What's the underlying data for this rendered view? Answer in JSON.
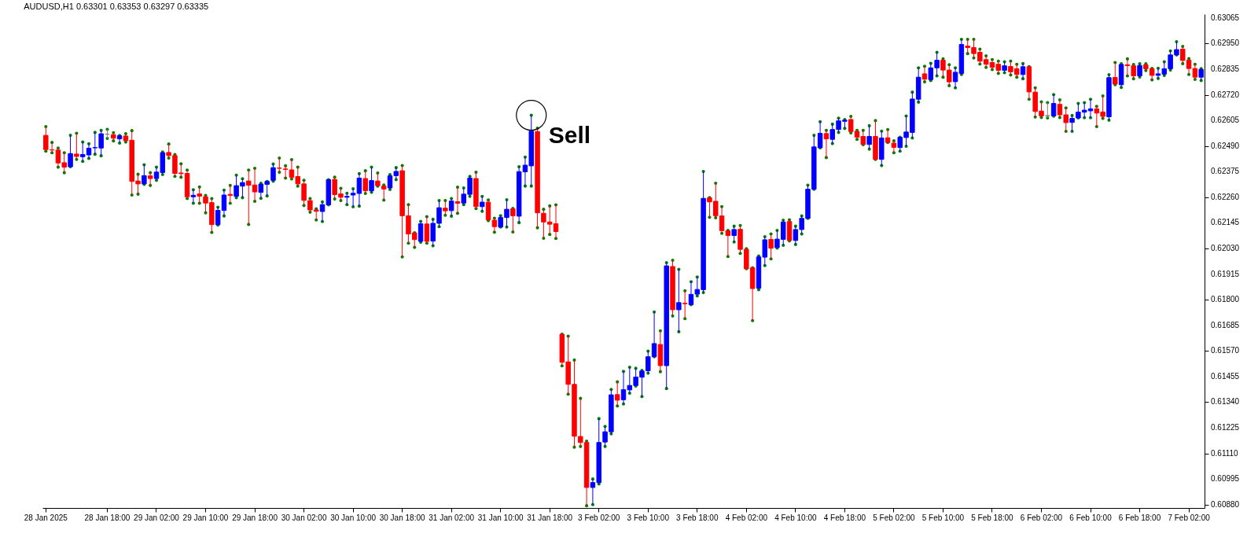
{
  "chart_data": {
    "type": "candlestick",
    "title": "AUDUSD,H1 0.63301 0.63353 0.63297 0.63335",
    "categories": [
      "28 Jan 2025",
      null,
      null,
      null,
      null,
      null,
      null,
      null,
      null,
      null,
      "28 Jan 18:00",
      null,
      null,
      null,
      null,
      null,
      null,
      null,
      "29 Jan 02:00",
      null,
      null,
      null,
      null,
      null,
      null,
      null,
      "29 Jan 10:00",
      null,
      null,
      null,
      null,
      null,
      null,
      null,
      "29 Jan 18:00",
      null,
      null,
      null,
      null,
      null,
      null,
      null,
      "30 Jan 02:00",
      null,
      null,
      null,
      null,
      null,
      null,
      null,
      "30 Jan 10:00",
      null,
      null,
      null,
      null,
      null,
      null,
      null,
      "30 Jan 18:00",
      null,
      null,
      null,
      null,
      null,
      null,
      null,
      "31 Jan 02:00",
      null,
      null,
      null,
      null,
      null,
      null,
      null,
      "31 Jan 10:00",
      null,
      null,
      null,
      null,
      null,
      null,
      null,
      "31 Jan 18:00",
      null,
      null,
      null,
      null,
      null,
      null,
      null,
      "3 Feb 02:00",
      null,
      null,
      null,
      null,
      null,
      null,
      null,
      "3 Feb 10:00",
      null,
      null,
      null,
      null,
      null,
      null,
      null,
      "3 Feb 18:00",
      null,
      null,
      null,
      null,
      null,
      null,
      null,
      "4 Feb 02:00",
      null,
      null,
      null,
      null,
      null,
      null,
      null,
      "4 Feb 10:00",
      null,
      null,
      null,
      null,
      null,
      null,
      null,
      "4 Feb 18:00",
      null,
      null,
      null,
      null,
      null,
      null,
      null,
      "5 Feb 02:00",
      null,
      null,
      null,
      null,
      null,
      null,
      null,
      "5 Feb 10:00",
      null,
      null,
      null,
      null,
      null,
      null,
      null,
      "5 Feb 18:00",
      null,
      null,
      null,
      null,
      null,
      null,
      null,
      "6 Feb 02:00",
      null,
      null,
      null,
      null,
      null,
      null,
      null,
      "6 Feb 10:00",
      null,
      null,
      null,
      null,
      null,
      null,
      null,
      "6 Feb 18:00",
      null,
      null,
      null,
      null,
      null,
      null,
      null,
      "7 Feb 02:00",
      null,
      null
    ],
    "ohlc": [
      [
        0.62538,
        0.62577,
        0.62467,
        0.62474
      ],
      [
        0.62473,
        0.62506,
        0.6246,
        0.62472
      ],
      [
        0.62472,
        0.62481,
        0.62395,
        0.62414
      ],
      [
        0.62415,
        0.6246,
        0.6237,
        0.62395
      ],
      [
        0.62397,
        0.62538,
        0.62397,
        0.62456
      ],
      [
        0.62454,
        0.62547,
        0.6243,
        0.62443
      ],
      [
        0.62442,
        0.62508,
        0.62421,
        0.62452
      ],
      [
        0.6245,
        0.625,
        0.62434,
        0.6248
      ],
      [
        0.62482,
        0.62551,
        0.62453,
        0.62483
      ],
      [
        0.62481,
        0.6256,
        0.62446,
        0.62545
      ],
      [
        0.62543,
        0.62565,
        0.62524,
        0.62543
      ],
      [
        0.62541,
        0.6255,
        0.62513,
        0.62525
      ],
      [
        0.62522,
        0.62537,
        0.62503,
        0.62536
      ],
      [
        0.62535,
        0.62545,
        0.62508,
        0.62514
      ],
      [
        0.62516,
        0.62559,
        0.6227,
        0.62331
      ],
      [
        0.62333,
        0.62363,
        0.62274,
        0.6232
      ],
      [
        0.6232,
        0.62406,
        0.62318,
        0.62357
      ],
      [
        0.62356,
        0.6237,
        0.62313,
        0.62344
      ],
      [
        0.62344,
        0.62395,
        0.62336,
        0.62373
      ],
      [
        0.62371,
        0.62463,
        0.62362,
        0.6246
      ],
      [
        0.62461,
        0.62499,
        0.62436,
        0.62447
      ],
      [
        0.62447,
        0.62452,
        0.62354,
        0.62367
      ],
      [
        0.62369,
        0.6241,
        0.6235,
        0.62366
      ],
      [
        0.62367,
        0.62382,
        0.62254,
        0.62262
      ],
      [
        0.62262,
        0.62294,
        0.62233,
        0.62269
      ],
      [
        0.62275,
        0.62306,
        0.62233,
        0.62265
      ],
      [
        0.62262,
        0.62268,
        0.6219,
        0.62234
      ],
      [
        0.62236,
        0.62254,
        0.62102,
        0.62137
      ],
      [
        0.62137,
        0.62215,
        0.62135,
        0.62201
      ],
      [
        0.62201,
        0.62292,
        0.62176,
        0.6227
      ],
      [
        0.62273,
        0.62313,
        0.62233,
        0.62268
      ],
      [
        0.62264,
        0.62359,
        0.62258,
        0.62312
      ],
      [
        0.6231,
        0.62343,
        0.62258,
        0.62326
      ],
      [
        0.62333,
        0.62382,
        0.62138,
        0.62314
      ],
      [
        0.62315,
        0.6239,
        0.62242,
        0.62284
      ],
      [
        0.62282,
        0.62323,
        0.62255,
        0.62319
      ],
      [
        0.62318,
        0.62331,
        0.62266,
        0.62331
      ],
      [
        0.62336,
        0.62409,
        0.62332,
        0.62393
      ],
      [
        0.62391,
        0.62436,
        0.62372,
        0.6239
      ],
      [
        0.62387,
        0.62401,
        0.62346,
        0.62385
      ],
      [
        0.62383,
        0.62429,
        0.62342,
        0.6235
      ],
      [
        0.62353,
        0.62395,
        0.6231,
        0.6232
      ],
      [
        0.6232,
        0.62336,
        0.62223,
        0.62246
      ],
      [
        0.62245,
        0.62254,
        0.62193,
        0.62203
      ],
      [
        0.62203,
        0.62208,
        0.62158,
        0.62197
      ],
      [
        0.62196,
        0.62239,
        0.62151,
        0.62227
      ],
      [
        0.62226,
        0.62339,
        0.62226,
        0.62339
      ],
      [
        0.6234,
        0.6235,
        0.62252,
        0.62272
      ],
      [
        0.62275,
        0.623,
        0.62245,
        0.6226
      ],
      [
        0.6226,
        0.62278,
        0.62227,
        0.62264
      ],
      [
        0.6227,
        0.62298,
        0.62217,
        0.62278
      ],
      [
        0.62277,
        0.62366,
        0.6222,
        0.62346
      ],
      [
        0.62344,
        0.62379,
        0.62277,
        0.62289
      ],
      [
        0.62289,
        0.62395,
        0.62282,
        0.62335
      ],
      [
        0.62333,
        0.62369,
        0.6231,
        0.62312
      ],
      [
        0.6231,
        0.62315,
        0.62247,
        0.62297
      ],
      [
        0.62302,
        0.62362,
        0.62295,
        0.62356
      ],
      [
        0.62357,
        0.62393,
        0.62339,
        0.62376
      ],
      [
        0.62379,
        0.62402,
        0.61992,
        0.62177
      ],
      [
        0.62177,
        0.62227,
        0.62054,
        0.62095
      ],
      [
        0.621,
        0.621,
        0.62035,
        0.6207
      ],
      [
        0.62062,
        0.62152,
        0.62058,
        0.62141
      ],
      [
        0.6214,
        0.62173,
        0.62054,
        0.62062
      ],
      [
        0.62063,
        0.62161,
        0.62042,
        0.62143
      ],
      [
        0.62143,
        0.62245,
        0.62128,
        0.62213
      ],
      [
        0.62211,
        0.62245,
        0.62179,
        0.62199
      ],
      [
        0.622,
        0.62254,
        0.62175,
        0.62243
      ],
      [
        0.6224,
        0.62305,
        0.62188,
        0.62233
      ],
      [
        0.62234,
        0.62302,
        0.62227,
        0.62274
      ],
      [
        0.62273,
        0.62354,
        0.62264,
        0.62346
      ],
      [
        0.62344,
        0.62372,
        0.62209,
        0.62218
      ],
      [
        0.62218,
        0.62264,
        0.62197,
        0.62238
      ],
      [
        0.62238,
        0.62248,
        0.62155,
        0.62159
      ],
      [
        0.62157,
        0.62166,
        0.62103,
        0.62128
      ],
      [
        0.62126,
        0.62177,
        0.62126,
        0.62169
      ],
      [
        0.62169,
        0.62249,
        0.62126,
        0.62206
      ],
      [
        0.62208,
        0.6221,
        0.62104,
        0.62177
      ],
      [
        0.62175,
        0.62397,
        0.62146,
        0.62375
      ],
      [
        0.62374,
        0.6244,
        0.6231,
        0.62404
      ],
      [
        0.62401,
        0.62628,
        0.6231,
        0.62557
      ],
      [
        0.62555,
        0.6257,
        0.62123,
        0.6219
      ],
      [
        0.62188,
        0.62206,
        0.62076,
        0.62149
      ],
      [
        0.62149,
        0.62221,
        0.62093,
        0.62139
      ],
      [
        0.62141,
        0.62226,
        0.62075,
        0.62106
      ],
      [
        0.61645,
        0.61645,
        0.61503,
        0.61519
      ],
      [
        0.61521,
        0.61636,
        0.61376,
        0.6142
      ],
      [
        0.6142,
        0.61529,
        0.61138,
        0.61187
      ],
      [
        0.61186,
        0.61357,
        0.61141,
        0.61159
      ],
      [
        0.61159,
        0.61165,
        0.60875,
        0.60957
      ],
      [
        0.60957,
        0.60995,
        0.6088,
        0.60979
      ],
      [
        0.60979,
        0.61266,
        0.60973,
        0.61159
      ],
      [
        0.61161,
        0.61231,
        0.61141,
        0.61207
      ],
      [
        0.61207,
        0.61397,
        0.61198,
        0.61373
      ],
      [
        0.61374,
        0.61431,
        0.61323,
        0.61349
      ],
      [
        0.61351,
        0.61478,
        0.61332,
        0.61396
      ],
      [
        0.61395,
        0.61497,
        0.6138,
        0.61415
      ],
      [
        0.61415,
        0.61492,
        0.61412,
        0.61453
      ],
      [
        0.61452,
        0.61483,
        0.61365,
        0.6148
      ],
      [
        0.61481,
        0.61569,
        0.6147,
        0.61544
      ],
      [
        0.61544,
        0.61745,
        0.61544,
        0.61603
      ],
      [
        0.61599,
        0.6166,
        0.61477,
        0.61504
      ],
      [
        0.61504,
        0.61966,
        0.61401,
        0.61952
      ],
      [
        0.61949,
        0.61977,
        0.61727,
        0.61755
      ],
      [
        0.61755,
        0.61936,
        0.61656,
        0.61787
      ],
      [
        0.61784,
        0.6184,
        0.61715,
        0.61782
      ],
      [
        0.61778,
        0.61881,
        0.61778,
        0.61824
      ],
      [
        0.61825,
        0.61902,
        0.61817,
        0.61846
      ],
      [
        0.61845,
        0.62376,
        0.61832,
        0.62255
      ],
      [
        0.62258,
        0.62258,
        0.6217,
        0.62239
      ],
      [
        0.62242,
        0.62323,
        0.62168,
        0.62177
      ],
      [
        0.62176,
        0.62218,
        0.62098,
        0.6211
      ],
      [
        0.62109,
        0.62111,
        0.61994,
        0.62088
      ],
      [
        0.62088,
        0.6213,
        0.62059,
        0.62115
      ],
      [
        0.62116,
        0.62133,
        0.62008,
        0.62026
      ],
      [
        0.62026,
        0.62029,
        0.61939,
        0.61939
      ],
      [
        0.61943,
        0.61943,
        0.61706,
        0.6185
      ],
      [
        0.61852,
        0.61996,
        0.61845,
        0.61992
      ],
      [
        0.61991,
        0.62083,
        0.61953,
        0.62069
      ],
      [
        0.62071,
        0.62095,
        0.61983,
        0.62031
      ],
      [
        0.62034,
        0.62111,
        0.62032,
        0.62072
      ],
      [
        0.62071,
        0.62157,
        0.62044,
        0.62149
      ],
      [
        0.62151,
        0.62159,
        0.62064,
        0.62066
      ],
      [
        0.62066,
        0.6213,
        0.62048,
        0.62115
      ],
      [
        0.62115,
        0.62176,
        0.62095,
        0.62165
      ],
      [
        0.62165,
        0.62314,
        0.62165,
        0.62296
      ],
      [
        0.62296,
        0.62538,
        0.62296,
        0.62486
      ],
      [
        0.62482,
        0.62599,
        0.62482,
        0.62547
      ],
      [
        0.62546,
        0.6256,
        0.62438,
        0.62522
      ],
      [
        0.6252,
        0.62588,
        0.62501,
        0.62564
      ],
      [
        0.62564,
        0.62615,
        0.62551,
        0.62603
      ],
      [
        0.62601,
        0.62609,
        0.62569,
        0.62606
      ],
      [
        0.62609,
        0.62623,
        0.62549,
        0.62555
      ],
      [
        0.62556,
        0.6256,
        0.6252,
        0.6253
      ],
      [
        0.62533,
        0.6256,
        0.62496,
        0.62497
      ],
      [
        0.62497,
        0.62581,
        0.62476,
        0.62533
      ],
      [
        0.62533,
        0.62604,
        0.6243,
        0.6243
      ],
      [
        0.6243,
        0.62557,
        0.62402,
        0.62526
      ],
      [
        0.62527,
        0.62564,
        0.62506,
        0.62506
      ],
      [
        0.62503,
        0.62513,
        0.6246,
        0.62484
      ],
      [
        0.62483,
        0.62529,
        0.62467,
        0.62529
      ],
      [
        0.62528,
        0.62625,
        0.62489,
        0.62553
      ],
      [
        0.62551,
        0.62732,
        0.62526,
        0.62701
      ],
      [
        0.627,
        0.62841,
        0.62687,
        0.62799
      ],
      [
        0.62814,
        0.62848,
        0.62778,
        0.6279
      ],
      [
        0.62788,
        0.62861,
        0.62784,
        0.62841
      ],
      [
        0.62841,
        0.62911,
        0.62805,
        0.62875
      ],
      [
        0.62875,
        0.62881,
        0.62799,
        0.62831
      ],
      [
        0.62831,
        0.62855,
        0.62761,
        0.62778
      ],
      [
        0.62779,
        0.62841,
        0.62751,
        0.62821
      ],
      [
        0.62816,
        0.62969,
        0.62811,
        0.62946
      ],
      [
        0.62939,
        0.62969,
        0.62905,
        0.62932
      ],
      [
        0.62932,
        0.62969,
        0.62885,
        0.62905
      ],
      [
        0.62911,
        0.62925,
        0.62858,
        0.62871
      ],
      [
        0.62878,
        0.62895,
        0.62843,
        0.62857
      ],
      [
        0.62865,
        0.62878,
        0.62833,
        0.62843
      ],
      [
        0.62857,
        0.62871,
        0.62816,
        0.6283
      ],
      [
        0.6283,
        0.62868,
        0.62819,
        0.6285
      ],
      [
        0.62847,
        0.62871,
        0.62809,
        0.62823
      ],
      [
        0.62837,
        0.62857,
        0.62799,
        0.62811
      ],
      [
        0.62811,
        0.6286,
        0.62792,
        0.62846
      ],
      [
        0.62846,
        0.62846,
        0.627,
        0.62733
      ],
      [
        0.62732,
        0.62751,
        0.6262,
        0.62645
      ],
      [
        0.62647,
        0.62688,
        0.62618,
        0.62625
      ],
      [
        0.62626,
        0.62685,
        0.62616,
        0.62626
      ],
      [
        0.62625,
        0.62721,
        0.62624,
        0.62681
      ],
      [
        0.62677,
        0.62697,
        0.62618,
        0.6263
      ],
      [
        0.6263,
        0.62661,
        0.62556,
        0.62595
      ],
      [
        0.62596,
        0.62627,
        0.62556,
        0.62614
      ],
      [
        0.62616,
        0.62681,
        0.62616,
        0.62642
      ],
      [
        0.62642,
        0.62685,
        0.62617,
        0.62651
      ],
      [
        0.62648,
        0.627,
        0.62617,
        0.62657
      ],
      [
        0.62657,
        0.62668,
        0.62577,
        0.62638
      ],
      [
        0.62643,
        0.62715,
        0.62614,
        0.62623
      ],
      [
        0.62621,
        0.6281,
        0.62606,
        0.62797
      ],
      [
        0.62798,
        0.62865,
        0.62765,
        0.62768
      ],
      [
        0.62765,
        0.62859,
        0.62753,
        0.62856
      ],
      [
        0.62855,
        0.62881,
        0.62805,
        0.62851
      ],
      [
        0.6285,
        0.62856,
        0.62792,
        0.62805
      ],
      [
        0.62805,
        0.62859,
        0.628,
        0.62851
      ],
      [
        0.62854,
        0.62859,
        0.62829,
        0.62837
      ],
      [
        0.62837,
        0.62838,
        0.62787,
        0.62807
      ],
      [
        0.62807,
        0.62839,
        0.62793,
        0.62814
      ],
      [
        0.62813,
        0.62868,
        0.62807,
        0.62837
      ],
      [
        0.62837,
        0.62917,
        0.62831,
        0.62899
      ],
      [
        0.62899,
        0.62958,
        0.62899,
        0.62923
      ],
      [
        0.62925,
        0.62937,
        0.6286,
        0.62874
      ],
      [
        0.62875,
        0.62882,
        0.62811,
        0.62838
      ],
      [
        0.62838,
        0.62857,
        0.62789,
        0.62799
      ],
      [
        0.62799,
        0.62837,
        0.62784,
        0.62834
      ]
    ],
    "colors": [
      "#ff0000",
      "#ff0000",
      "#ff0000",
      "#ff0000",
      "#0000ff",
      "#ff0000",
      "#0000ff",
      "#0000ff",
      "#0000ff",
      "#0000ff",
      "#808080",
      "#ff0000",
      "#0000ff",
      "#ff0000",
      "#ff0000",
      "#ff0000",
      "#0000ff",
      "#ff0000",
      "#0000ff",
      "#0000ff",
      "#ff0000",
      "#ff0000",
      "#ff0000",
      "#ff0000",
      "#0000ff",
      "#ff0000",
      "#ff0000",
      "#ff0000",
      "#0000ff",
      "#0000ff",
      "#ff0000",
      "#0000ff",
      "#0000ff",
      "#ff0000",
      "#ff0000",
      "#0000ff",
      "#0000ff",
      "#0000ff",
      "#ff0000",
      "#ff0000",
      "#ff0000",
      "#ff0000",
      "#ff0000",
      "#ff0000",
      "#ff0000",
      "#0000ff",
      "#0000ff",
      "#ff0000",
      "#ff0000",
      "#0000ff",
      "#0000ff",
      "#0000ff",
      "#ff0000",
      "#0000ff",
      "#ff0000",
      "#ff0000",
      "#0000ff",
      "#0000ff",
      "#ff0000",
      "#ff0000",
      "#ff0000",
      "#0000ff",
      "#ff0000",
      "#0000ff",
      "#0000ff",
      "#ff0000",
      "#0000ff",
      "#ff0000",
      "#0000ff",
      "#0000ff",
      "#ff0000",
      "#0000ff",
      "#ff0000",
      "#ff0000",
      "#0000ff",
      "#0000ff",
      "#ff0000",
      "#0000ff",
      "#0000ff",
      "#0000ff",
      "#ff0000",
      "#ff0000",
      "#ff0000",
      "#ff0000",
      "#ff0000",
      "#ff0000",
      "#ff0000",
      "#ff0000",
      "#ff0000",
      "#0000ff",
      "#0000ff",
      "#0000ff",
      "#0000ff",
      "#ff0000",
      "#0000ff",
      "#0000ff",
      "#0000ff",
      "#0000ff",
      "#0000ff",
      "#0000ff",
      "#ff0000",
      "#0000ff",
      "#ff0000",
      "#0000ff",
      "#ff0000",
      "#0000ff",
      "#0000ff",
      "#0000ff",
      "#ff0000",
      "#ff0000",
      "#ff0000",
      "#ff0000",
      "#0000ff",
      "#ff0000",
      "#ff0000",
      "#ff0000",
      "#0000ff",
      "#0000ff",
      "#ff0000",
      "#0000ff",
      "#0000ff",
      "#ff0000",
      "#0000ff",
      "#0000ff",
      "#0000ff",
      "#0000ff",
      "#0000ff",
      "#ff0000",
      "#0000ff",
      "#0000ff",
      "#0000ff",
      "#ff0000",
      "#ff0000",
      "#ff0000",
      "#0000ff",
      "#ff0000",
      "#0000ff",
      "#ff0000",
      "#ff0000",
      "#0000ff",
      "#0000ff",
      "#0000ff",
      "#0000ff",
      "#ff0000",
      "#0000ff",
      "#0000ff",
      "#ff0000",
      "#ff0000",
      "#0000ff",
      "#0000ff",
      "#ff0000",
      "#ff0000",
      "#ff0000",
      "#ff0000",
      "#ff0000",
      "#ff0000",
      "#0000ff",
      "#ff0000",
      "#ff0000",
      "#0000ff",
      "#ff0000",
      "#ff0000",
      "#ff0000",
      "#808080",
      "#0000ff",
      "#ff0000",
      "#ff0000",
      "#0000ff",
      "#0000ff",
      "#0000ff",
      "#0000ff",
      "#ff0000",
      "#ff0000",
      "#0000ff",
      "#ff0000",
      "#0000ff",
      "#ff0000",
      "#ff0000",
      "#0000ff",
      "#ff0000",
      "#ff0000",
      "#0000ff",
      "#0000ff",
      "#0000ff",
      "#0000ff",
      "#ff0000",
      "#ff0000",
      "#ff0000",
      "#0000ff"
    ],
    "marker": "circle",
    "ylim": [
      0.60865,
      0.63082
    ],
    "yticks": [
      {
        "value": 0.6088,
        "label": "0.60880"
      },
      0.60995,
      {
        "value": 0.6111,
        "label": "0.61110"
      },
      0.61225,
      {
        "value": 0.6134,
        "label": "0.61340"
      },
      0.61455,
      {
        "value": 0.6157,
        "label": "0.61570"
      },
      0.61685,
      {
        "value": 0.618,
        "label": "0.61800"
      },
      0.61915,
      {
        "value": 0.6203,
        "label": "0.62030"
      },
      0.62145,
      {
        "value": 0.6226,
        "label": "0.62260"
      },
      0.62375,
      {
        "value": 0.6249,
        "label": "0.62490"
      },
      0.62605,
      {
        "value": 0.6272,
        "label": "0.62720"
      },
      0.62835,
      {
        "value": 0.6295,
        "label": "0.62950"
      },
      0.63065
    ],
    "annotations": [
      "Sell"
    ]
  }
}
